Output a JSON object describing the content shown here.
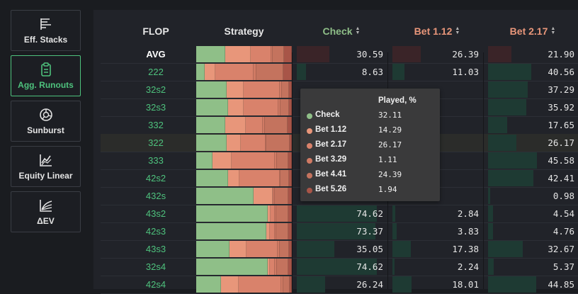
{
  "sidebar": {
    "items": [
      {
        "label": "Eff. Stacks",
        "icon": "stacks-icon",
        "active": false
      },
      {
        "label": "Agg. Runouts",
        "icon": "clipboard-icon",
        "active": true
      },
      {
        "label": "Sunburst",
        "icon": "sunburst-icon",
        "active": false
      },
      {
        "label": "Equity Linear",
        "icon": "equity-chart-icon",
        "active": false
      },
      {
        "label": "ΔEV",
        "icon": "ev-curve-icon",
        "active": false
      }
    ]
  },
  "table": {
    "headers": {
      "flop": "FLOP",
      "strategy": "Strategy",
      "check": "Check",
      "bet1": "Bet 1.12",
      "bet2": "Bet 2.17"
    },
    "colors": {
      "check": "#8fbf88",
      "bet1": "#e8967a",
      "bet2": "#d9826b",
      "bet3": "#d07a64",
      "bet4": "#c4735e",
      "bet5": "#a85548"
    },
    "rows": [
      {
        "flop": "AVG",
        "check": "30.59",
        "bet1": "26.39",
        "bet2": "21.90",
        "strategy": [
          30.59,
          26.39,
          21.9,
          1.11,
          12.0,
          8.01
        ]
      },
      {
        "flop": "222",
        "check": "8.63",
        "bet1": "11.03",
        "bet2": "40.56",
        "strategy": [
          8.63,
          11.03,
          40.56,
          3.0,
          28.0,
          8.78
        ]
      },
      {
        "flop": "32s2",
        "check": "",
        "bet1": "",
        "bet2": "37.29",
        "strategy": [
          32.0,
          18.0,
          37.29,
          2.0,
          8.0,
          2.71
        ]
      },
      {
        "flop": "32s3",
        "check": "",
        "bet1": "",
        "bet2": "35.92",
        "strategy": [
          33.0,
          17.0,
          35.92,
          2.0,
          9.0,
          3.08
        ]
      },
      {
        "flop": "332",
        "check": "",
        "bet1": "",
        "bet2": "17.65",
        "strategy": [
          30.0,
          22.0,
          17.65,
          2.0,
          24.0,
          4.35
        ]
      },
      {
        "flop": "322",
        "check": "",
        "bet1": "",
        "bet2": "26.17",
        "strategy": [
          32.11,
          14.29,
          26.17,
          1.11,
          24.39,
          1.94
        ]
      },
      {
        "flop": "333",
        "check": "",
        "bet1": "",
        "bet2": "45.58",
        "strategy": [
          17.0,
          20.0,
          45.58,
          2.0,
          12.0,
          3.42
        ]
      },
      {
        "flop": "42s2",
        "check": "",
        "bet1": "",
        "bet2": "42.41",
        "strategy": [
          33.0,
          12.0,
          42.41,
          1.0,
          9.0,
          2.59
        ]
      },
      {
        "flop": "432s",
        "check": "",
        "bet1": "",
        "bet2": "0.98",
        "strategy": [
          60.0,
          20.0,
          0.98,
          1.0,
          14.0,
          4.02
        ]
      },
      {
        "flop": "43s2",
        "check": "74.62",
        "bet1": "2.84",
        "bet2": "4.54",
        "strategy": [
          74.62,
          2.84,
          4.54,
          2.0,
          12.0,
          4.0
        ]
      },
      {
        "flop": "42s3",
        "check": "73.37",
        "bet1": "3.83",
        "bet2": "4.76",
        "strategy": [
          73.37,
          3.83,
          4.76,
          2.0,
          12.0,
          4.04
        ]
      },
      {
        "flop": "43s3",
        "check": "35.05",
        "bet1": "17.38",
        "bet2": "32.67",
        "strategy": [
          35.05,
          17.38,
          32.67,
          2.0,
          10.0,
          2.9
        ]
      },
      {
        "flop": "32s4",
        "check": "74.62",
        "bet1": "2.24",
        "bet2": "5.37",
        "strategy": [
          74.62,
          2.24,
          5.37,
          2.0,
          12.0,
          3.77
        ]
      },
      {
        "flop": "42s4",
        "check": "26.24",
        "bet1": "18.01",
        "bet2": "44.85",
        "strategy": [
          26.24,
          18.01,
          44.85,
          2.0,
          7.0,
          1.9
        ]
      }
    ]
  },
  "tooltip": {
    "header": "Played, %",
    "items": [
      {
        "name": "Check",
        "value": "32.11",
        "color": "#8fbf88"
      },
      {
        "name": "Bet 1.12",
        "value": "14.29",
        "color": "#e8967a"
      },
      {
        "name": "Bet 2.17",
        "value": "26.17",
        "color": "#d9826b"
      },
      {
        "name": "Bet 3.29",
        "value": "1.11",
        "color": "#d07a64"
      },
      {
        "name": "Bet 4.41",
        "value": "24.39",
        "color": "#c4735e"
      },
      {
        "name": "Bet 5.26",
        "value": "1.94",
        "color": "#a85548"
      }
    ]
  }
}
